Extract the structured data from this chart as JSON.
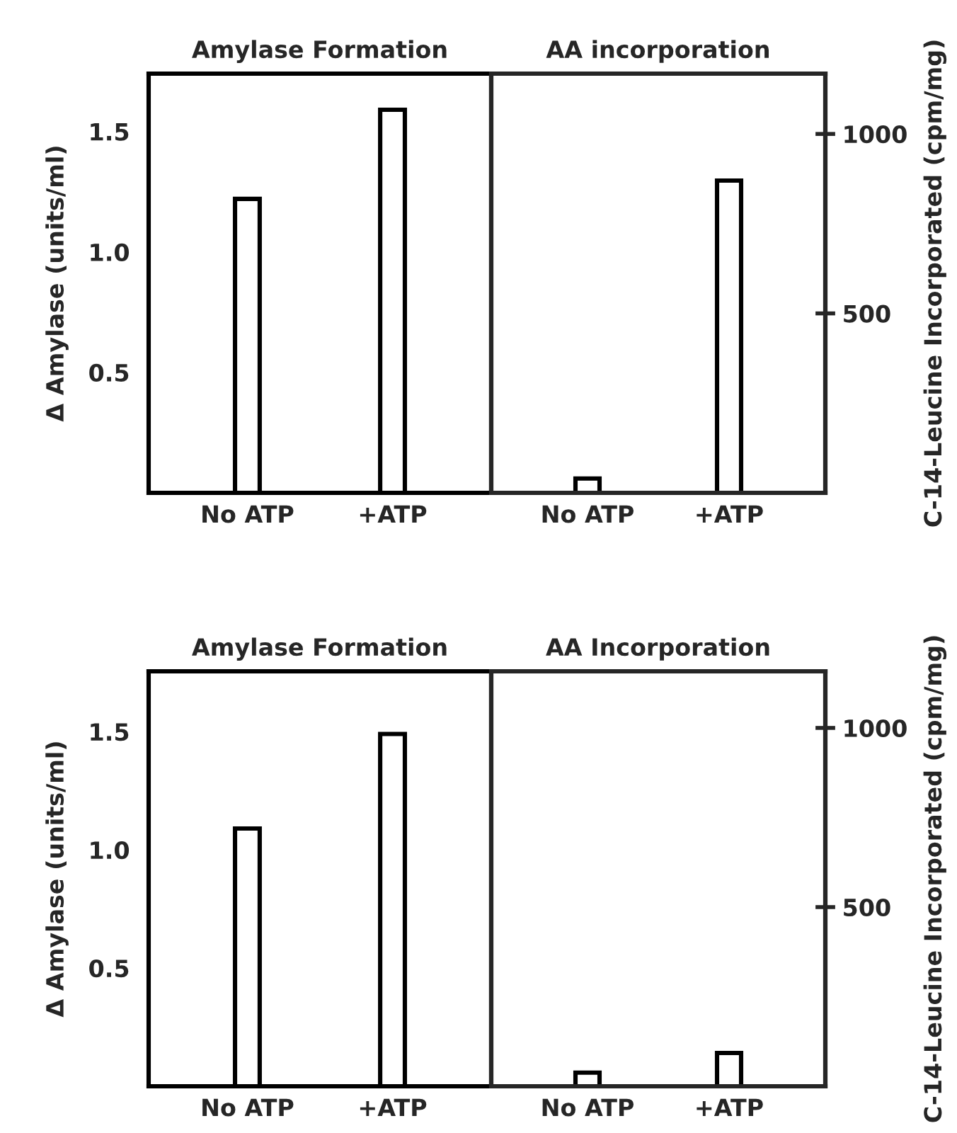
{
  "chart_data": [
    {
      "type": "bar",
      "title": "Amylase Formation",
      "ylabel": "Δ Amylase (units/ml)",
      "categories": [
        "No ATP",
        "+ATP"
      ],
      "series": [
        {
          "color": "#ffffff",
          "values": [
            1.22,
            1.59
          ]
        }
      ],
      "ylim": [
        0,
        1.74
      ],
      "yticks": [
        {
          "value": 0.5,
          "label": "0.5"
        },
        {
          "value": 1.0,
          "label": "1.0"
        },
        {
          "value": 1.5,
          "label": "1.5"
        }
      ],
      "grid": false,
      "legend": false
    },
    {
      "type": "bar",
      "title": "AA incorporation",
      "y2label": "C-14-Leucine Incorporated (cpm/mg)",
      "categories": [
        "No ATP",
        "+ATP"
      ],
      "series": [
        {
          "color": "#ffffff",
          "axis": "y2",
          "values": [
            40,
            870
          ]
        }
      ],
      "y2lim": [
        0,
        1168
      ],
      "y2ticks": [
        500,
        1000
      ],
      "grid": false,
      "legend": false
    },
    {
      "type": "bar",
      "title": "Amylase Formation",
      "ylabel": "Δ Amylase (units/ml)",
      "categories": [
        "No ATP",
        "+ATP"
      ],
      "series": [
        {
          "color": "#ffffff",
          "values": [
            1.09,
            1.49
          ]
        }
      ],
      "ylim": [
        0,
        1.755
      ],
      "yticks": [
        {
          "value": 0.5,
          "label": "0.5"
        },
        {
          "value": 1.0,
          "label": "1.0"
        },
        {
          "value": 1.5,
          "label": "1.5"
        }
      ],
      "grid": false,
      "legend": false
    },
    {
      "type": "bar",
      "title": "AA Incorporation",
      "y2label": "C-14-Leucine Incorporated (cpm/mg)",
      "categories": [
        "No ATP",
        "+ATP"
      ],
      "series": [
        {
          "color": "#ffffff",
          "axis": "y2",
          "values": [
            38,
            93
          ]
        }
      ],
      "y2lim": [
        0,
        1158
      ],
      "y2ticks": [
        500,
        1000
      ],
      "grid": false,
      "legend": false
    }
  ]
}
